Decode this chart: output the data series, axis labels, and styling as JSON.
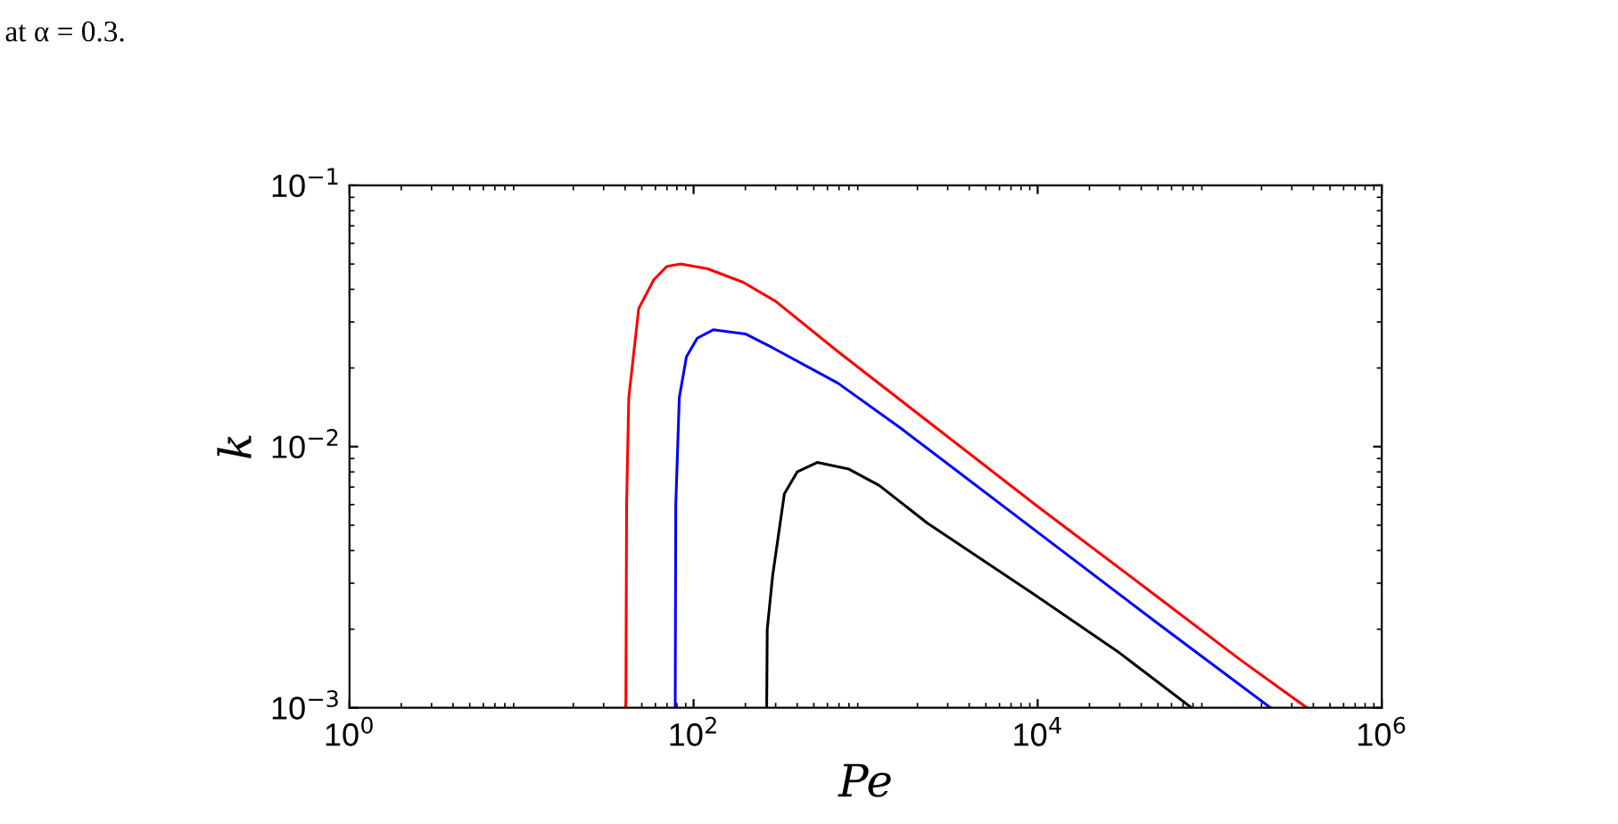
{
  "chart_data": {
    "type": "line",
    "xlabel": "Pe",
    "ylabel": "k",
    "log": "xy",
    "grid": false,
    "marker": "none",
    "line_style": "solid",
    "annotations": [
      "at α = 0.3."
    ],
    "xlim": [
      1,
      1000000
    ],
    "ylim": [
      0.001,
      0.1
    ],
    "xticks": [
      {
        "value": 1,
        "label": "10$^{0}$"
      },
      {
        "value": 100,
        "label": "10$^{2}$"
      },
      {
        "value": 10000,
        "label": "10$^{4}$"
      },
      {
        "value": 1000000,
        "label": "10$^{6}$"
      }
    ],
    "yticks": [
      {
        "value": 0.001,
        "label": "10$^{−3}$"
      },
      {
        "value": 0.01,
        "label": "10$^{−2}$"
      },
      {
        "value": 0.1,
        "label": "10$^{−1}$"
      }
    ],
    "series": [
      {
        "color": "#ff0000",
        "x": [
          40.4,
          40.8,
          42,
          48,
          58.7,
          70,
          84,
          120,
          194,
          300,
          690,
          2570,
          10000,
          50000,
          150000,
          367000
        ],
        "values": [
          0.001,
          0.006,
          0.0154,
          0.0338,
          0.0435,
          0.049,
          0.05,
          0.048,
          0.0426,
          0.036,
          0.0231,
          0.0118,
          0.0059,
          0.00265,
          0.00153,
          0.001
        ]
      },
      {
        "color": "#0000ff",
        "x": [
          78.2,
          78.8,
          82.6,
          90.9,
          105,
          130,
          200,
          288,
          690,
          1590,
          10000,
          50000,
          226000
        ],
        "values": [
          0.001,
          0.006,
          0.0154,
          0.0221,
          0.026,
          0.028,
          0.027,
          0.0239,
          0.0175,
          0.0118,
          0.0047,
          0.0021,
          0.001
        ]
      },
      {
        "color": "#000000",
        "x": [
          266,
          268,
          288,
          337,
          400,
          523,
          800,
          1200,
          2280,
          9530,
          30000,
          78500
        ],
        "values": [
          0.001,
          0.002,
          0.0032,
          0.0066,
          0.008,
          0.0087,
          0.0082,
          0.0071,
          0.0051,
          0.00272,
          0.00162,
          0.001
        ]
      }
    ]
  }
}
